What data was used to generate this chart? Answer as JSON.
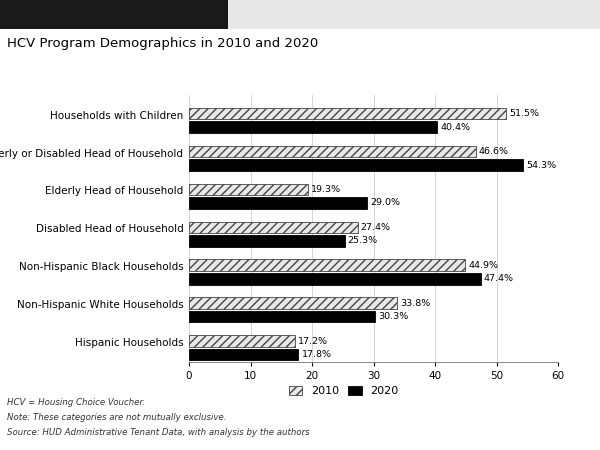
{
  "title": "HCV Program Demographics in 2010 and 2020",
  "categories": [
    "Households with Children",
    "Elderly or Disabled Head of Household",
    "Elderly Head of Household",
    "Disabled Head of Household",
    "Non-Hispanic Black Households",
    "Non-Hispanic White Households",
    "Hispanic Households"
  ],
  "values_2010": [
    51.5,
    46.6,
    19.3,
    27.4,
    44.9,
    33.8,
    17.2
  ],
  "values_2020": [
    40.4,
    54.3,
    29.0,
    25.3,
    47.4,
    30.3,
    17.8
  ],
  "labels_2010": [
    "51.5%",
    "46.6%",
    "19.3%",
    "27.4%",
    "44.9%",
    "33.8%",
    "17.2%"
  ],
  "labels_2020": [
    "40.4%",
    "54.3%",
    "29.0%",
    "25.3%",
    "47.4%",
    "30.3%",
    "17.8%"
  ],
  "color_2010": "#e8e8e8",
  "color_2020": "#000000",
  "hatch_2010": "////",
  "footnote_lines": [
    "HCV = Housing Choice Voucher.",
    "Note: These categories are not mutually exclusive.",
    "Source: HUD Administrative Tenant Data, with analysis by the authors"
  ],
  "background_color": "#ffffff",
  "xlim": [
    0,
    60
  ],
  "top_strip_color": "#e8e8e8",
  "black_bar_color": "#1a1a1a"
}
